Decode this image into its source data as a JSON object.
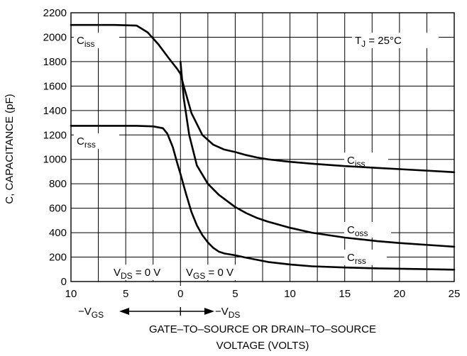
{
  "chart_data": {
    "type": "line",
    "title": "",
    "ylabel": "C, CAPACITANCE (pF)",
    "xlabel_line1": "GATE–TO–SOURCE OR DRAIN–TO–SOURCE",
    "xlabel_line2": "VOLTAGE (VOLTS)",
    "x_direction_left": "−V_GS",
    "x_direction_right": "−V_DS",
    "region_left": "V_DS = 0 V",
    "region_right": "V_GS = 0 V",
    "condition": "T_J = 25°C",
    "xlim": [
      -10,
      25
    ],
    "ylim": [
      0,
      2200
    ],
    "x_ticks": [
      -10,
      -5,
      0,
      5,
      10,
      15,
      20,
      25
    ],
    "x_tick_labels": [
      "10",
      "5",
      "0",
      "5",
      "10",
      "15",
      "20",
      "25"
    ],
    "y_ticks": [
      0,
      200,
      400,
      600,
      800,
      1000,
      1200,
      1400,
      1600,
      1800,
      2000,
      2200
    ],
    "x_minor_grid": [
      -7.5,
      -2.5,
      2.5,
      7.5,
      12.5,
      17.5,
      22.5
    ],
    "grid": true,
    "series": [
      {
        "name": "C_iss",
        "label_left": "C_iss",
        "label_right": "C_iss",
        "points": [
          [
            -10,
            2100
          ],
          [
            -6,
            2100
          ],
          [
            -4,
            2095
          ],
          [
            -3,
            2040
          ],
          [
            -2,
            1940
          ],
          [
            -1,
            1820
          ],
          [
            -0.3,
            1740
          ],
          [
            0,
            1700
          ],
          [
            0.3,
            1600
          ],
          [
            1,
            1380
          ],
          [
            2,
            1200
          ],
          [
            3,
            1120
          ],
          [
            4,
            1080
          ],
          [
            5,
            1060
          ],
          [
            6,
            1035
          ],
          [
            7,
            1015
          ],
          [
            8,
            1000
          ],
          [
            10,
            980
          ],
          [
            12,
            965
          ],
          [
            15,
            945
          ],
          [
            18,
            930
          ],
          [
            20,
            920
          ],
          [
            25,
            895
          ]
        ]
      },
      {
        "name": "C_oss",
        "label_right": "C_oss",
        "points": [
          [
            0,
            1800
          ],
          [
            0.3,
            1500
          ],
          [
            0.8,
            1200
          ],
          [
            1.5,
            950
          ],
          [
            2.5,
            800
          ],
          [
            3.5,
            710
          ],
          [
            5,
            610
          ],
          [
            6,
            560
          ],
          [
            7,
            520
          ],
          [
            8,
            490
          ],
          [
            10,
            440
          ],
          [
            12,
            400
          ],
          [
            15,
            360
          ],
          [
            18,
            330
          ],
          [
            20,
            315
          ],
          [
            25,
            285
          ]
        ]
      },
      {
        "name": "C_rss",
        "label_left": "C_rss",
        "label_right": "C_rss",
        "points": [
          [
            -10,
            1275
          ],
          [
            -6,
            1275
          ],
          [
            -4,
            1275
          ],
          [
            -2.5,
            1270
          ],
          [
            -1.6,
            1255
          ],
          [
            -1.2,
            1210
          ],
          [
            -0.7,
            1100
          ],
          [
            -0.3,
            970
          ],
          [
            0,
            880
          ],
          [
            0.5,
            720
          ],
          [
            1,
            570
          ],
          [
            1.5,
            460
          ],
          [
            2,
            380
          ],
          [
            2.5,
            320
          ],
          [
            3,
            275
          ],
          [
            3.5,
            245
          ],
          [
            4,
            230
          ],
          [
            5,
            215
          ],
          [
            6,
            195
          ],
          [
            8,
            160
          ],
          [
            10,
            140
          ],
          [
            12,
            125
          ],
          [
            15,
            115
          ],
          [
            18,
            108
          ],
          [
            20,
            105
          ],
          [
            25,
            97
          ]
        ]
      }
    ]
  }
}
